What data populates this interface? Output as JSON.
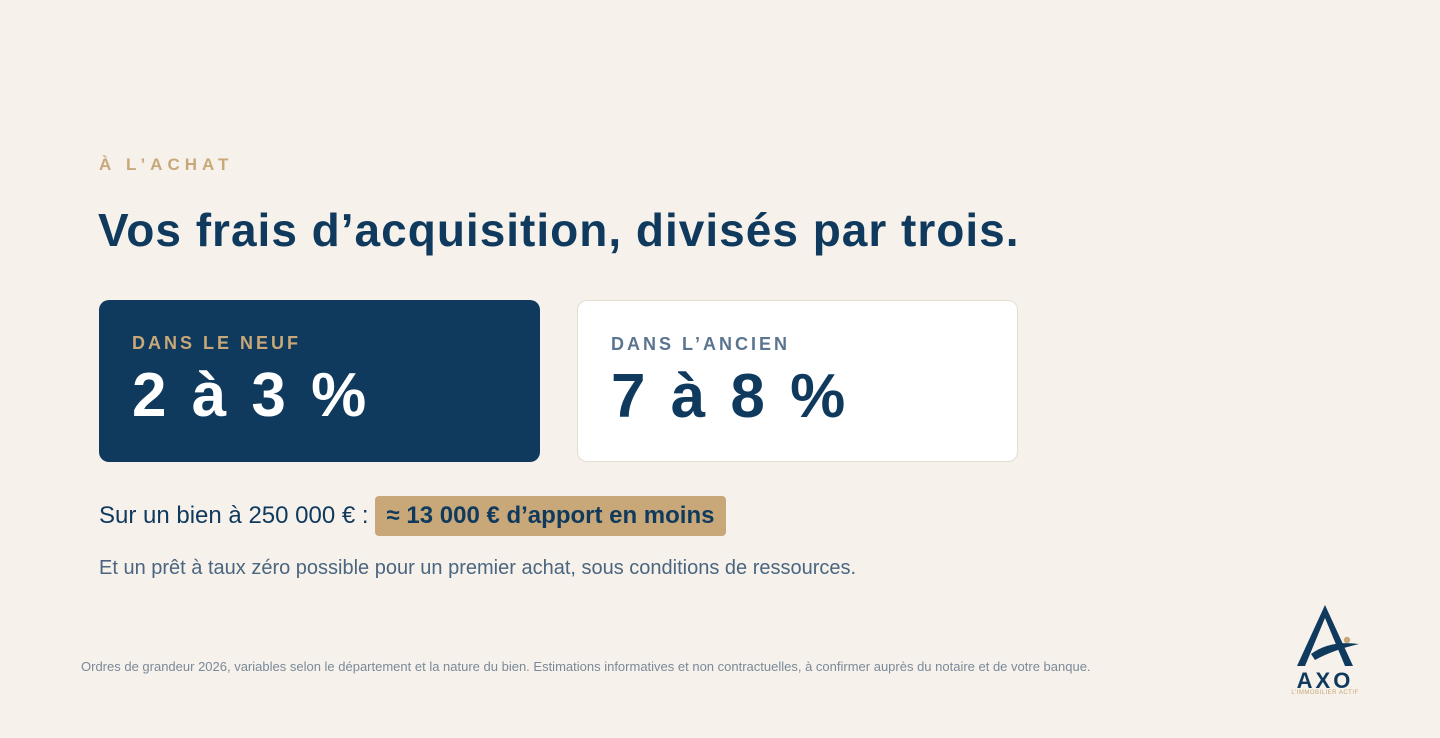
{
  "eyebrow": "À L’ACHAT",
  "headline": "Vos frais d’acquisition, divisés par trois.",
  "cards": [
    {
      "label": "DANS LE NEUF",
      "value": "2 à 3 %"
    },
    {
      "label": "DANS L’ANCIEN",
      "value": "7 à 8 %"
    }
  ],
  "example": {
    "prefix": "Sur un bien à 250 000 € :",
    "highlight": "≈ 13 000 € d’apport en moins"
  },
  "subline": "Et un prêt à taux zéro possible pour un premier achat, sous conditions de ressources.",
  "footnote": "Ordres de grandeur 2026, variables selon le département et la nature du bien. Estimations informatives et non contractuelles, à confirmer auprès du notaire et de votre banque.",
  "logo": {
    "name": "AXO",
    "tagline": "L’IMMOBILIER ACTIF",
    "icon": "axo-logo-icon"
  },
  "colors": {
    "background": "#f6f1ea",
    "navy": "#0f3a5e",
    "gold": "#c8a878",
    "muted": "#5a7590"
  }
}
